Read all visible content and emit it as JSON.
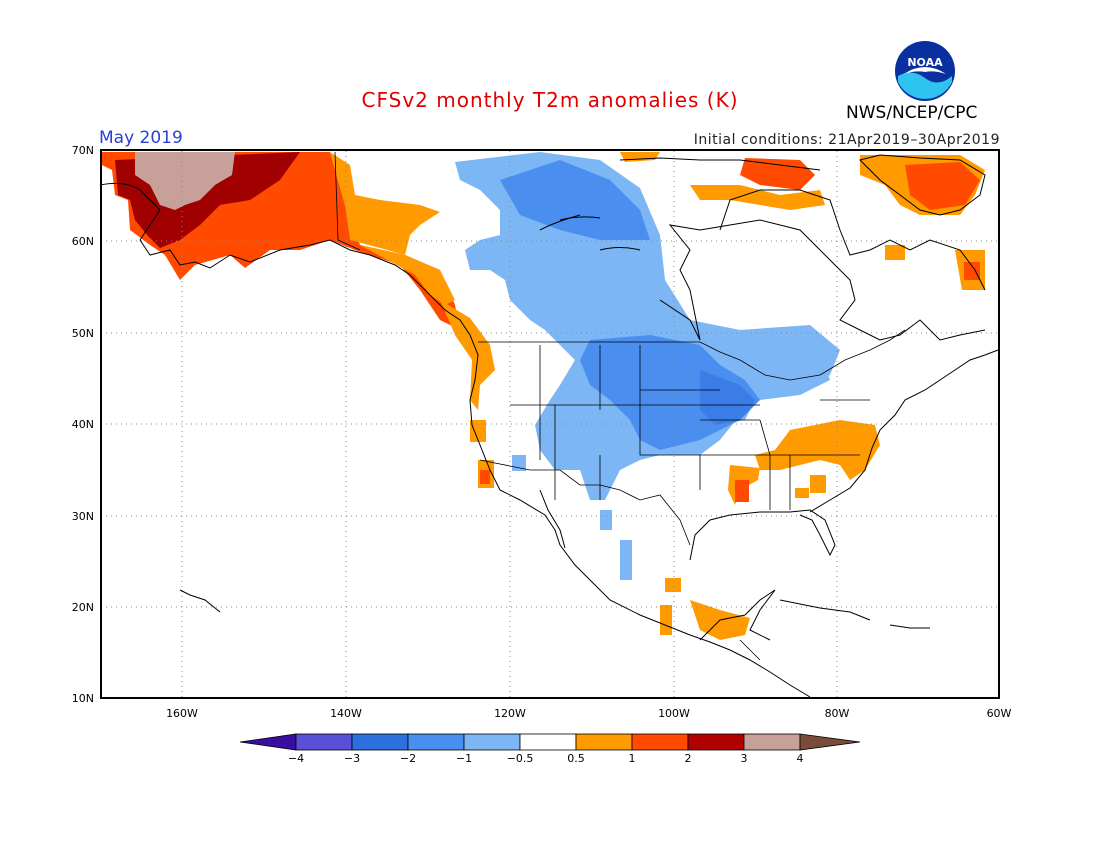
{
  "header": {
    "title": "CFSv2 monthly T2m anomalies (K)",
    "month": "May 2019",
    "initial_conditions": "Initial conditions: 21Apr2019–30Apr2019",
    "agency": "NWS/NCEP/CPC",
    "logo_text": "NOAA"
  },
  "map": {
    "lat_labels": [
      "70N",
      "60N",
      "50N",
      "40N",
      "30N",
      "20N",
      "10N"
    ],
    "lon_labels": [
      "160W",
      "140W",
      "120W",
      "100W",
      "80W",
      "60W"
    ],
    "lon_range": [
      -170,
      -60
    ],
    "lat_range": [
      10,
      70
    ]
  },
  "colorbar": {
    "labels": [
      "−4",
      "−3",
      "−2",
      "−1",
      "−0.5",
      "0.5",
      "1",
      "2",
      "3",
      "4"
    ],
    "colors": [
      "#3a0fa0",
      "#5a4fd8",
      "#2e6fe0",
      "#4a8ff0",
      "#7cb6f5",
      "#ffffff",
      "#ff9a00",
      "#ff4a00",
      "#b00000",
      "#c8a09a",
      "#7a4a3a"
    ]
  },
  "colors": {
    "strong_warm": "#a00000",
    "warm": "#ff4a00",
    "mild_warm": "#ff9a00",
    "extreme_warm": "#c8a09a",
    "mild_cool": "#7cb6f5",
    "cool": "#4a8ff0"
  }
}
